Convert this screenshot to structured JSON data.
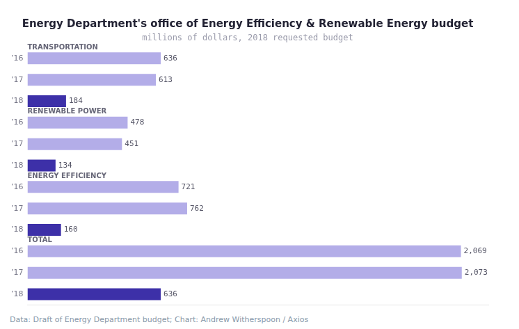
{
  "chart_data": {
    "type": "bar",
    "orientation": "horizontal",
    "title": "Energy Department's office of Energy Efficiency & Renewable Energy budget",
    "subtitle": "millions of dollars, 2018 requested budget",
    "footnote": "Data: Draft of Energy Department budget; Chart: Andrew Witherspoon / Axios",
    "group_labels": [
      "TRANSPORTATION",
      "RENEWABLE POWER",
      "ENERGY EFFICIENCY",
      "TOTAL"
    ],
    "categories": [
      "’16",
      "’17",
      "’18",
      "’16",
      "’17",
      "’18",
      "’16",
      "’17",
      "’18",
      "’16",
      "’17",
      "’18"
    ],
    "values": [
      636,
      613,
      184,
      478,
      451,
      134,
      721,
      762,
      160,
      2069,
      2073,
      636
    ],
    "value_labels": [
      "636",
      "613",
      "184",
      "478",
      "451",
      "134",
      "721",
      "762",
      "160",
      "2,069",
      "2,073",
      "636"
    ],
    "colors": [
      "#b3ade8",
      "#b3ade8",
      "#3d30a8",
      "#b3ade8",
      "#b3ade8",
      "#3d30a8",
      "#b3ade8",
      "#b3ade8",
      "#3d30a8",
      "#b3ade8",
      "#b3ade8",
      "#3d30a8"
    ],
    "xlim": [
      0,
      2200
    ],
    "data_labels": true,
    "tick_labels": "y",
    "grid": false
  }
}
